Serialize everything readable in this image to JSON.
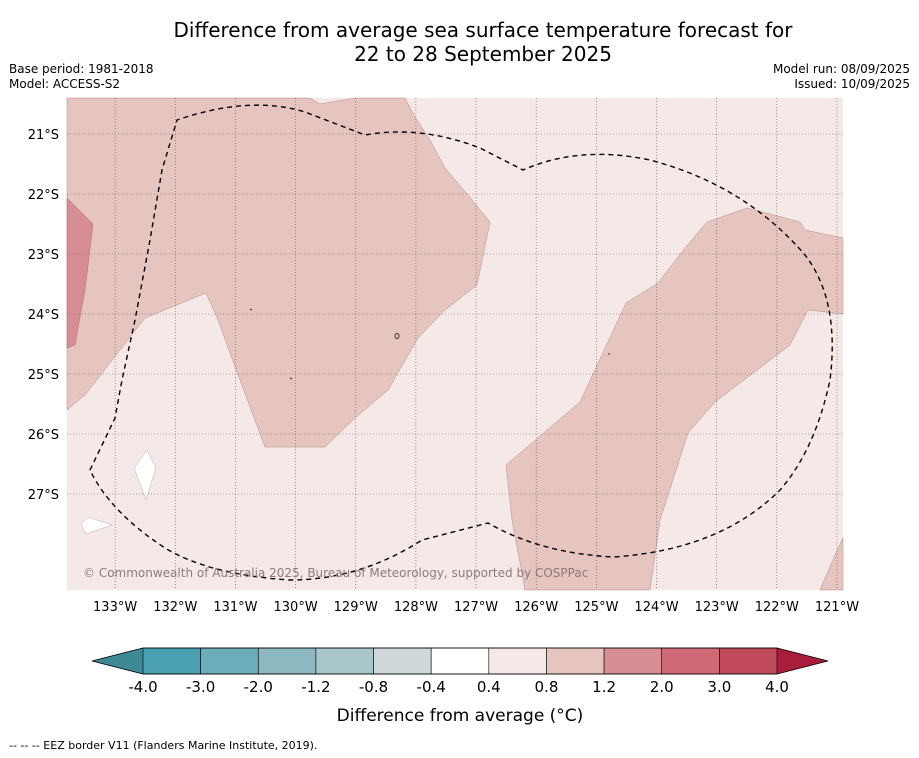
{
  "title": "Difference from average sea surface temperature forecast for\n22 to 28 September 2025",
  "meta_left": [
    "Base period: 1981-2018",
    "Model: ACCESS-S2"
  ],
  "meta_right": [
    "Model run: 08/09/2025",
    "Issued: 10/09/2025"
  ],
  "watermark": "© Commonwealth of Australia 2025, Bureau of Meteorology, supported by COSPPac",
  "footer": "-- -- -- EEZ border V11 (Flanders Marine Institute, 2019).",
  "map": {
    "lon_range": [
      133.8,
      120.9
    ],
    "lat_range": [
      20.4,
      28.6
    ],
    "lon_labels": [
      "133°W",
      "132°W",
      "131°W",
      "130°W",
      "129°W",
      "128°W",
      "127°W",
      "126°W",
      "125°W",
      "124°W",
      "123°W",
      "122°W",
      "121°W"
    ],
    "lat_labels": [
      "21°S",
      "22°S",
      "23°S",
      "24°S",
      "25°S",
      "26°S",
      "27°S"
    ],
    "background_class": "0.4 to 0.8",
    "anomaly_regions": [
      "0.8 to 1.2",
      "1.2 to 2.0"
    ]
  },
  "colorbar": {
    "label": "Difference from average (°C)",
    "ticks": [
      "-4.0",
      "-3.0",
      "-2.0",
      "-1.2",
      "-0.8",
      "-0.4",
      "0.4",
      "0.8",
      "1.2",
      "2.0",
      "3.0",
      "4.0"
    ],
    "colors": [
      "#4aa0b0",
      "#6cadba",
      "#8cb8c2",
      "#a9c6ca",
      "#cfd8da",
      "#ffffff",
      "#f5e9e8",
      "#e6c4c0",
      "#d68e94",
      "#cd6a75",
      "#c04a5a"
    ],
    "under_color": "#3d8996",
    "over_color": "#a81d3c"
  }
}
